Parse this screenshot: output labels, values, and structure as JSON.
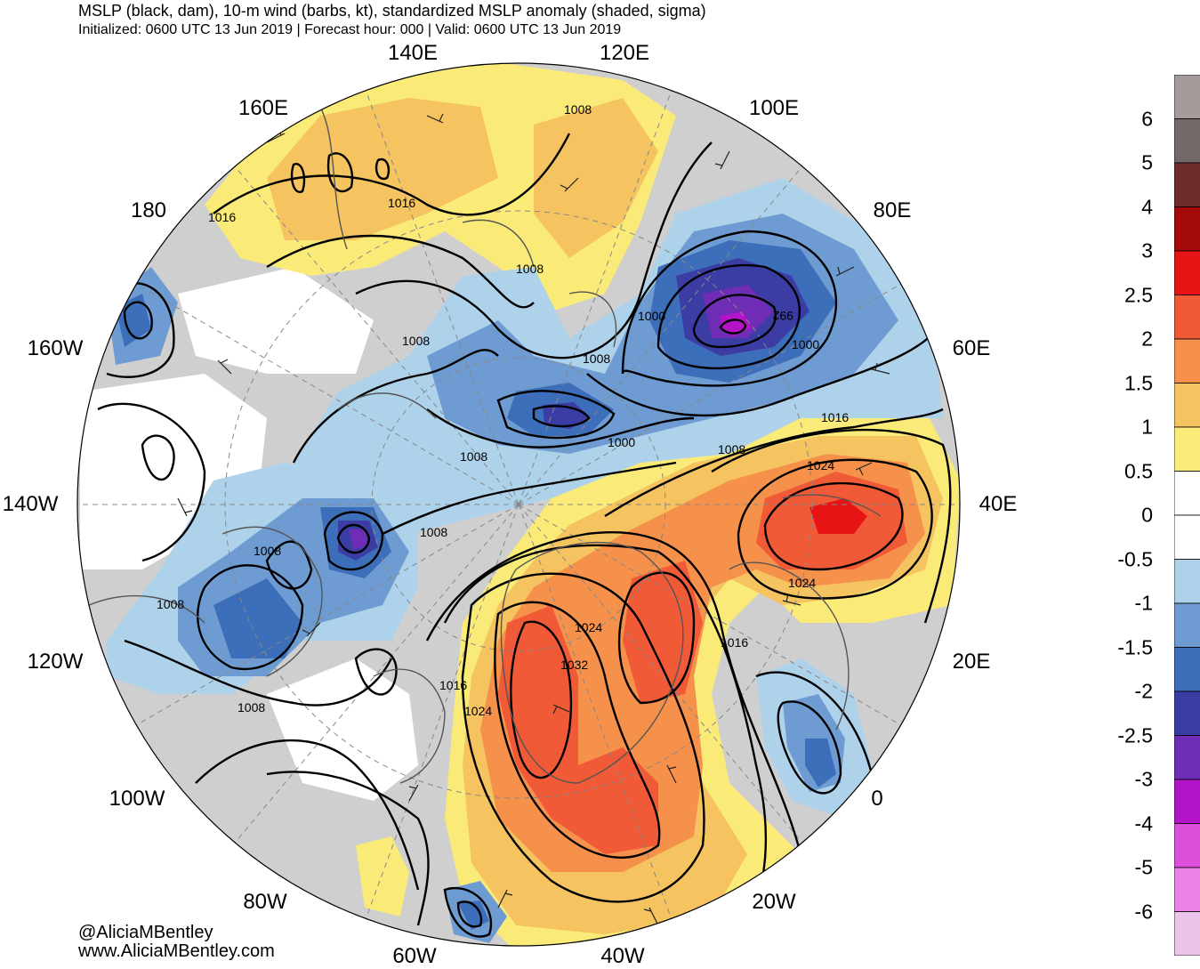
{
  "header": {
    "title": "MSLP (black, dam), 10-m wind (barbs, kt), standardized MSLP anomaly (shaded, sigma)",
    "subtitle": "Initialized: 0600 UTC 13 Jun 2019 | Forecast hour: 000 | Valid: 0600 UTC 13 Jun 2019"
  },
  "credits": {
    "handle": "@AliciaMBentley",
    "website": "www.AliciaMBentley.com"
  },
  "longitude_labels": [
    "140E",
    "120E",
    "160E",
    "100E",
    "180",
    "80E",
    "160W",
    "60E",
    "140W",
    "40E",
    "120W",
    "20E",
    "100W",
    "0",
    "80W",
    "20W",
    "60W",
    "40W"
  ],
  "colorbar": {
    "labels": [
      "6",
      "5",
      "4",
      "3",
      "2.5",
      "2",
      "1.5",
      "1",
      "0.5",
      "0",
      "-0.5",
      "-1",
      "-1.5",
      "-2",
      "-2.5",
      "-3",
      "-4",
      "-5",
      "-6"
    ],
    "colors": [
      "#a59b9b",
      "#736969",
      "#6e2d2d",
      "#a50a0a",
      "#e61414",
      "#f05a37",
      "#f5914b",
      "#f5c35f",
      "#faeb78",
      "#ffffff",
      "#ffffff",
      "#afd2eb",
      "#6e9bd2",
      "#3c6eb9",
      "#3c3ca5",
      "#6e2db4",
      "#b414c8",
      "#dc50dc",
      "#eb82e6",
      "#ebc3eb"
    ]
  },
  "map": {
    "contour_labels": [
      "1008",
      "1016",
      "1016",
      "1008",
      "1000",
      "992",
      "1000",
      "1008",
      "1008",
      "1000",
      "1016",
      "1008",
      "1024",
      "1008",
      "1008",
      "1008",
      "1008",
      "1024",
      "1024",
      "1032",
      "1016",
      "1024",
      "1008",
      "1016"
    ],
    "colors": {
      "ocean_white": "#ffffff",
      "land_gray": "#cfcfcf",
      "yellow": "#faeb78",
      "light_orange": "#f5c35f",
      "orange": "#f5914b",
      "red_orange": "#f05a37",
      "red": "#e61414",
      "light_blue": "#afd2eb",
      "blue": "#6e9bd2",
      "medium_blue": "#3c6eb9",
      "dark_blue": "#3c3ca5",
      "purple": "#6e2db4",
      "magenta": "#b414c8",
      "coastline": "#555555"
    }
  }
}
